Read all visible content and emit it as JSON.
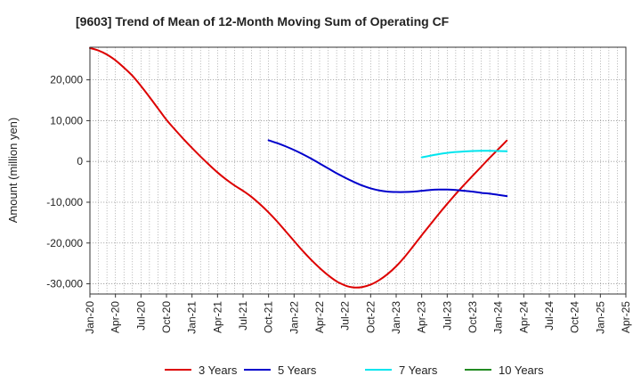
{
  "chart_data": {
    "type": "line",
    "title": "[9603]  Trend of Mean of 12-Month Moving Sum of Operating CF",
    "xlabel": "",
    "ylabel": "Amount (million yen)",
    "ylim": [
      -32500,
      28000
    ],
    "y_ticks": [
      20000,
      10000,
      0,
      -10000,
      -20000,
      -30000
    ],
    "y_tick_labels": [
      "20,000",
      "10,000",
      "0",
      "-10,000",
      "-20,000",
      "-30,000"
    ],
    "x_tick_labels": [
      "Jan-20",
      "Apr-20",
      "Jul-20",
      "Oct-20",
      "Jan-21",
      "Apr-21",
      "Jul-21",
      "Oct-21",
      "Jan-22",
      "Apr-22",
      "Jul-22",
      "Oct-22",
      "Jan-23",
      "Apr-23",
      "Jul-23",
      "Oct-23",
      "Jan-24",
      "Apr-24",
      "Jul-24",
      "Oct-24",
      "Jan-25",
      "Apr-25"
    ],
    "grid": true,
    "legend_position": "bottom",
    "series": [
      {
        "name": "3 Years",
        "color": "#dd0000",
        "points": [
          [
            0,
            27800
          ],
          [
            1,
            27200
          ],
          [
            2,
            26200
          ],
          [
            3,
            24800
          ],
          [
            4,
            23000
          ],
          [
            5,
            21000
          ],
          [
            6,
            18500
          ],
          [
            7,
            15800
          ],
          [
            8,
            13000
          ],
          [
            9,
            10200
          ],
          [
            10,
            7800
          ],
          [
            11,
            5500
          ],
          [
            12,
            3300
          ],
          [
            13,
            1200
          ],
          [
            14,
            -800
          ],
          [
            15,
            -2700
          ],
          [
            16,
            -4400
          ],
          [
            17,
            -5900
          ],
          [
            18,
            -7200
          ],
          [
            19,
            -8700
          ],
          [
            20,
            -10500
          ],
          [
            21,
            -12500
          ],
          [
            22,
            -14700
          ],
          [
            23,
            -17100
          ],
          [
            24,
            -19500
          ],
          [
            25,
            -21900
          ],
          [
            26,
            -24100
          ],
          [
            27,
            -26100
          ],
          [
            28,
            -27900
          ],
          [
            29,
            -29400
          ],
          [
            30,
            -30400
          ],
          [
            31,
            -30900
          ],
          [
            32,
            -30800
          ],
          [
            33,
            -30200
          ],
          [
            34,
            -29100
          ],
          [
            35,
            -27600
          ],
          [
            36,
            -25700
          ],
          [
            37,
            -23400
          ],
          [
            38,
            -20800
          ],
          [
            39,
            -18100
          ],
          [
            40,
            -15500
          ],
          [
            41,
            -12900
          ],
          [
            42,
            -10400
          ],
          [
            43,
            -8000
          ],
          [
            44,
            -5700
          ],
          [
            45,
            -3500
          ],
          [
            46,
            -1300
          ],
          [
            47,
            900
          ],
          [
            48,
            3000
          ],
          [
            49,
            5100
          ]
        ]
      },
      {
        "name": "5 Years",
        "color": "#0000cc",
        "points": [
          [
            21,
            5200
          ],
          [
            22,
            4500
          ],
          [
            23,
            3700
          ],
          [
            24,
            2800
          ],
          [
            25,
            1800
          ],
          [
            26,
            700
          ],
          [
            27,
            -500
          ],
          [
            28,
            -1700
          ],
          [
            29,
            -2900
          ],
          [
            30,
            -4000
          ],
          [
            31,
            -5000
          ],
          [
            32,
            -5900
          ],
          [
            33,
            -6600
          ],
          [
            34,
            -7100
          ],
          [
            35,
            -7400
          ],
          [
            36,
            -7500
          ],
          [
            37,
            -7500
          ],
          [
            38,
            -7400
          ],
          [
            39,
            -7200
          ],
          [
            40,
            -7000
          ],
          [
            41,
            -6900
          ],
          [
            42,
            -6900
          ],
          [
            43,
            -7000
          ],
          [
            44,
            -7200
          ],
          [
            45,
            -7400
          ],
          [
            46,
            -7700
          ],
          [
            47,
            -7900
          ],
          [
            48,
            -8200
          ],
          [
            49,
            -8500
          ]
        ]
      },
      {
        "name": "7 Years",
        "color": "#00e5ee",
        "points": [
          [
            39,
            1000
          ],
          [
            40,
            1400
          ],
          [
            41,
            1800
          ],
          [
            42,
            2100
          ],
          [
            43,
            2300
          ],
          [
            44,
            2450
          ],
          [
            45,
            2550
          ],
          [
            46,
            2600
          ],
          [
            47,
            2600
          ],
          [
            48,
            2550
          ],
          [
            49,
            2500
          ]
        ]
      },
      {
        "name": "10 Years",
        "color": "#228b22",
        "points": []
      }
    ]
  }
}
